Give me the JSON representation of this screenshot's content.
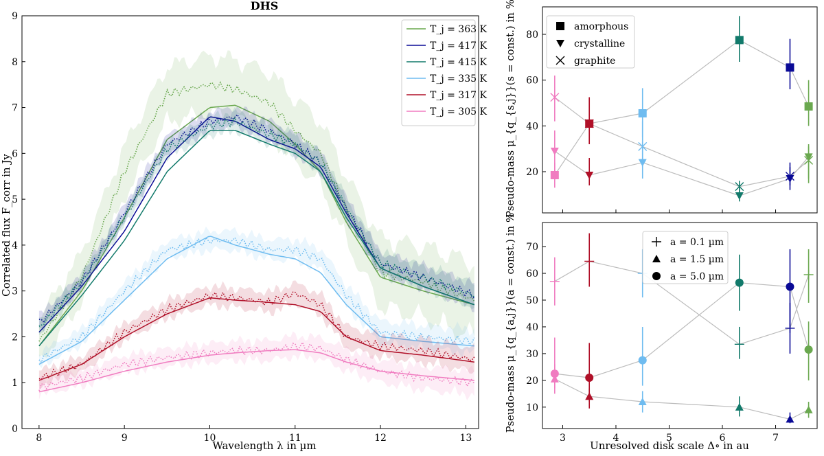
{
  "colors": {
    "green": "#6aa84f",
    "navy": "#0a0a96",
    "teal": "#127a6b",
    "sky": "#6fbcf0",
    "crimson": "#b01028",
    "pink": "#f07cc0",
    "grey": "#bcbcbc"
  },
  "chart_data": [
    {
      "type": "line",
      "title": "DHS",
      "xlabel": "Wavelength λ in µm",
      "ylabel": "Correlated flux F_corr in Jy",
      "xlim": [
        7.8,
        13.15
      ],
      "ylim": [
        0,
        9
      ],
      "xticks": [
        "8",
        "9",
        "10",
        "11",
        "12",
        "13"
      ],
      "yticks": [
        "0",
        "1",
        "2",
        "3",
        "4",
        "5",
        "6",
        "7",
        "8",
        "9"
      ],
      "legend_position": "top-right",
      "x": [
        8.0,
        8.5,
        9.0,
        9.5,
        10.0,
        10.3,
        10.7,
        11.0,
        11.3,
        11.6,
        12.0,
        12.5,
        13.1
      ],
      "series": [
        {
          "name": "T_j = 363 K",
          "color_key": "green",
          "model": [
            1.8,
            3.0,
            4.6,
            6.3,
            7.0,
            7.05,
            6.7,
            6.2,
            5.6,
            4.5,
            3.3,
            3.0,
            2.7
          ],
          "data": [
            1.9,
            3.3,
            5.6,
            7.3,
            7.5,
            7.4,
            7.1,
            6.5,
            6.0,
            4.8,
            3.4,
            3.2,
            2.8
          ]
        },
        {
          "name": "T_j = 417 K",
          "color_key": "navy",
          "model": [
            2.1,
            3.1,
            4.3,
            5.9,
            6.8,
            6.7,
            6.3,
            6.1,
            5.7,
            4.7,
            3.5,
            3.1,
            2.7
          ],
          "data": [
            2.3,
            3.2,
            4.7,
            6.2,
            6.7,
            6.8,
            6.5,
            6.2,
            5.8,
            4.8,
            3.6,
            3.3,
            2.9
          ]
        },
        {
          "name": "T_j = 415 K",
          "color_key": "teal",
          "model": [
            1.8,
            2.9,
            4.1,
            5.6,
            6.5,
            6.5,
            6.2,
            6.0,
            5.6,
            4.6,
            3.5,
            3.1,
            2.7
          ],
          "data": [
            2.2,
            3.2,
            4.6,
            6.1,
            6.6,
            6.7,
            6.4,
            6.2,
            5.8,
            4.8,
            3.6,
            3.3,
            2.9
          ]
        },
        {
          "name": "T_j = 335 K",
          "color_key": "sky",
          "model": [
            1.4,
            1.9,
            2.8,
            3.7,
            4.2,
            4.0,
            3.8,
            3.7,
            3.4,
            2.7,
            2.0,
            1.9,
            1.8
          ],
          "data": [
            1.5,
            2.0,
            3.0,
            3.9,
            4.1,
            4.1,
            3.9,
            3.9,
            3.7,
            2.9,
            2.1,
            2.0,
            1.9
          ]
        },
        {
          "name": "T_j = 317 K",
          "color_key": "crimson",
          "model": [
            1.05,
            1.4,
            2.0,
            2.5,
            2.85,
            2.8,
            2.75,
            2.7,
            2.55,
            2.0,
            1.7,
            1.6,
            1.45
          ],
          "data": [
            1.1,
            1.4,
            2.1,
            2.6,
            2.9,
            2.85,
            2.75,
            2.95,
            2.7,
            2.0,
            1.8,
            1.7,
            1.5
          ]
        },
        {
          "name": "T_j = 305 K",
          "color_key": "pink",
          "model": [
            0.8,
            1.0,
            1.25,
            1.45,
            1.6,
            1.65,
            1.7,
            1.72,
            1.65,
            1.45,
            1.25,
            1.15,
            1.05
          ],
          "data": [
            0.9,
            1.1,
            1.4,
            1.55,
            1.65,
            1.7,
            1.7,
            1.8,
            1.75,
            1.5,
            1.25,
            1.1,
            1.0
          ]
        }
      ]
    },
    {
      "type": "scatter",
      "xlabel": "",
      "ylabel": "Pseudo-mass μ_{q_{s,j}}(s = const.) in %",
      "xlim": [
        2.62,
        7.78
      ],
      "ylim": [
        2,
        92
      ],
      "yticks": [
        "20",
        "40",
        "60",
        "80"
      ],
      "legend_position": "top-left",
      "legend": [
        {
          "marker": "square",
          "label": "amorphous"
        },
        {
          "marker": "triangle-down",
          "label": "crystalline"
        },
        {
          "marker": "cross",
          "label": "graphite"
        }
      ],
      "points": [
        {
          "x": 2.85,
          "color_key": "pink",
          "amorphous": {
            "v": 18.5,
            "lo": 13,
            "hi": 24
          },
          "crystalline": {
            "v": 29,
            "lo": 17,
            "hi": 38
          },
          "graphite": {
            "v": 52.5,
            "lo": 42,
            "hi": 62
          }
        },
        {
          "x": 3.5,
          "color_key": "crimson",
          "amorphous": {
            "v": 41,
            "lo": 32,
            "hi": 52.5
          },
          "crystalline": {
            "v": 18.5,
            "lo": 14,
            "hi": 26
          },
          "graphite": {
            "v": 41,
            "lo": 32,
            "hi": 52.5
          }
        },
        {
          "x": 4.5,
          "color_key": "sky",
          "amorphous": {
            "v": 45.5,
            "lo": 35,
            "hi": 56.5
          },
          "crystalline": {
            "v": 24,
            "lo": 17,
            "hi": 33
          },
          "graphite": {
            "v": 31,
            "lo": 22,
            "hi": 42
          }
        },
        {
          "x": 6.32,
          "color_key": "teal",
          "amorphous": {
            "v": 77.5,
            "lo": 68,
            "hi": 88
          },
          "crystalline": {
            "v": 9.5,
            "lo": 7,
            "hi": 13
          },
          "graphite": {
            "v": 13.5,
            "lo": 10,
            "hi": 16
          }
        },
        {
          "x": 7.27,
          "color_key": "navy",
          "amorphous": {
            "v": 65.5,
            "lo": 56,
            "hi": 78
          },
          "crystalline": {
            "v": 17,
            "lo": 12,
            "hi": 24
          },
          "graphite": {
            "v": 18,
            "lo": 14,
            "hi": 22
          }
        },
        {
          "x": 7.62,
          "color_key": "green",
          "amorphous": {
            "v": 48.5,
            "lo": 40,
            "hi": 60
          },
          "crystalline": {
            "v": 26.5,
            "lo": 15,
            "hi": 32
          },
          "graphite": {
            "v": 25,
            "lo": 17,
            "hi": 31
          }
        }
      ]
    },
    {
      "type": "scatter",
      "xlabel": "Unresolved disk scale Δ∘ in au",
      "ylabel": "Pseudo-mass μ_{q_{a,j}}(a = const.) in %",
      "xlim": [
        2.62,
        7.78
      ],
      "ylim": [
        2,
        79
      ],
      "xticks": [
        "3",
        "4",
        "5",
        "6",
        "7"
      ],
      "yticks": [
        "10",
        "20",
        "30",
        "40",
        "50",
        "60",
        "70"
      ],
      "legend_position": "top-center",
      "legend": [
        {
          "marker": "plus",
          "label": "a = 0.1 µm"
        },
        {
          "marker": "triangle-up",
          "label": "a = 1.5 µm"
        },
        {
          "marker": "circle",
          "label": "a = 5.0 µm"
        }
      ],
      "points": [
        {
          "x": 2.85,
          "color_key": "pink",
          "a01": {
            "v": 57,
            "lo": 48,
            "hi": 66
          },
          "a15": {
            "v": 20.5,
            "lo": 15,
            "hi": 26
          },
          "a50": {
            "v": 22.5,
            "lo": 17,
            "hi": 36
          }
        },
        {
          "x": 3.5,
          "color_key": "crimson",
          "a01": {
            "v": 64.5,
            "lo": 55,
            "hi": 75
          },
          "a15": {
            "v": 14,
            "lo": 9.5,
            "hi": 17
          },
          "a50": {
            "v": 21,
            "lo": 12,
            "hi": 34
          }
        },
        {
          "x": 4.5,
          "color_key": "sky",
          "a01": {
            "v": 60,
            "lo": 51,
            "hi": 69
          },
          "a15": {
            "v": 12,
            "lo": 8,
            "hi": 16
          },
          "a50": {
            "v": 27.5,
            "lo": 18,
            "hi": 40
          }
        },
        {
          "x": 6.32,
          "color_key": "teal",
          "a01": {
            "v": 33.5,
            "lo": 28,
            "hi": 40
          },
          "a15": {
            "v": 10,
            "lo": 6.5,
            "hi": 14
          },
          "a50": {
            "v": 56.5,
            "lo": 46,
            "hi": 67
          }
        },
        {
          "x": 7.27,
          "color_key": "navy",
          "a01": {
            "v": 39.5,
            "lo": 30,
            "hi": 49
          },
          "a15": {
            "v": 5.5,
            "lo": 4,
            "hi": 8
          },
          "a50": {
            "v": 55,
            "lo": 40,
            "hi": 69
          }
        },
        {
          "x": 7.62,
          "color_key": "green",
          "a01": {
            "v": 59.5,
            "lo": 49,
            "hi": 69
          },
          "a15": {
            "v": 9,
            "lo": 6,
            "hi": 12
          },
          "a50": {
            "v": 31.5,
            "lo": 20,
            "hi": 42
          }
        }
      ]
    }
  ]
}
